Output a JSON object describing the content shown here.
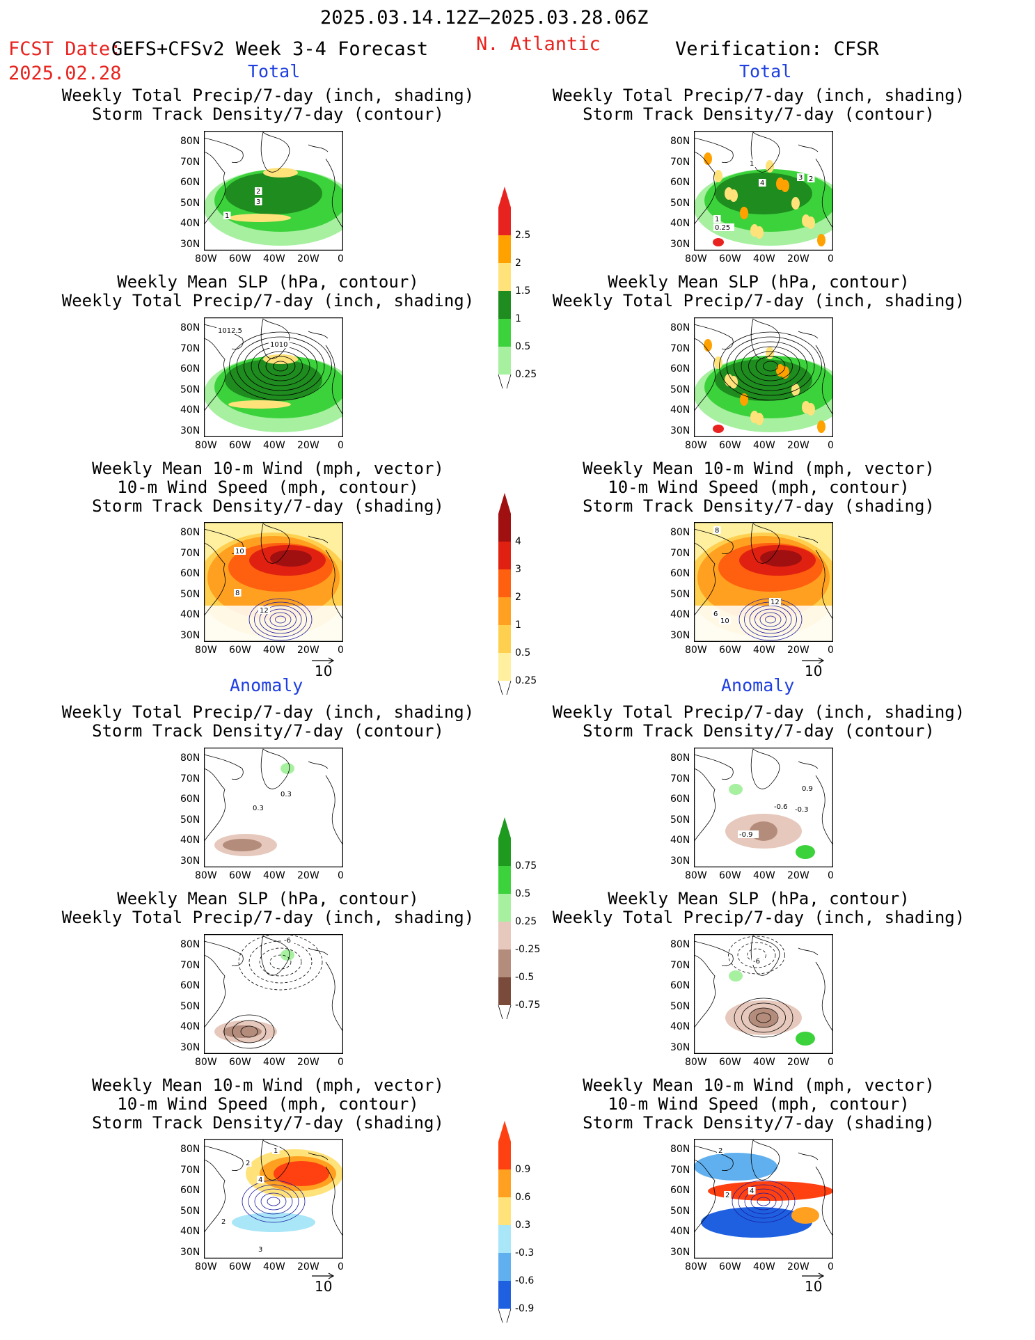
{
  "header": {
    "date_range": "2025.03.14.12Z–2025.03.28.06Z",
    "fcst_label": "FCST Date:",
    "model": "GEFS+CFSv2 Week 3-4 Forecast",
    "fcst_date": "2025.02.28",
    "region": "N. Atlantic",
    "verification": "Verification: CFSR"
  },
  "sections": {
    "total": "Total",
    "anomaly": "Anomaly"
  },
  "titles": {
    "precip_storm": [
      "Weekly Total Precip/7-day (inch, shading)",
      "Storm Track Density/7-day (contour)"
    ],
    "slp_precip": [
      "Weekly Mean SLP (hPa, contour)",
      "Weekly Total Precip/7-day (inch, shading)"
    ],
    "wind_storm": [
      "Weekly Mean 10-m Wind (mph, vector)",
      "10-m Wind Speed (mph, contour)",
      "Storm Track Density/7-day (shading)"
    ]
  },
  "axes": {
    "lat_labels": [
      "80N",
      "70N",
      "60N",
      "50N",
      "40N",
      "30N"
    ],
    "lon_labels": [
      "80W",
      "60W",
      "40W",
      "20W",
      "0"
    ]
  },
  "vector_ref": "10",
  "colorbars": {
    "precip_total": {
      "labels": [
        "2.5",
        "2",
        "1.5",
        "1",
        "0.5",
        "0.25"
      ],
      "colors": [
        "#e8231f",
        "#ffa200",
        "#ffe27a",
        "#1e8c1e",
        "#3cd23c",
        "#a6f0a0"
      ]
    },
    "storm_total": {
      "labels": [
        "4",
        "3",
        "2",
        "1",
        "0.5",
        "0.25"
      ],
      "colors": [
        "#a01010",
        "#e02010",
        "#ff6010",
        "#ffa020",
        "#ffd050",
        "#fff0a0"
      ]
    },
    "precip_anom": {
      "labels": [
        "0.75",
        "0.5",
        "0.25",
        "-0.25",
        "-0.5",
        "-0.75"
      ],
      "colors": [
        "#1e9a1e",
        "#3cd23c",
        "#a6f0a0",
        "#e6c8bc",
        "#b48c7c",
        "#7a4a3a"
      ]
    },
    "storm_anom": {
      "labels": [
        "0.9",
        "0.6",
        "0.3",
        "-0.3",
        "-0.6",
        "-0.9"
      ],
      "colors": [
        "#ff4010",
        "#ffa020",
        "#ffe27a",
        "#a8e6f8",
        "#60b0f0",
        "#1e60e0"
      ]
    }
  },
  "panel_labels": {
    "L1": [
      "1",
      "2",
      "3"
    ],
    "R1": [
      "1",
      "4",
      "3",
      "2",
      "1",
      "0.25"
    ],
    "L2": [
      "1012.5",
      "1010"
    ],
    "L3": [
      "10",
      "8",
      "12"
    ],
    "R3": [
      "8",
      "12",
      "6",
      "10"
    ],
    "L4": [
      "0.3",
      "0.3"
    ],
    "R4": [
      "0.9",
      "-0.6",
      "-0.3",
      "-0.9"
    ],
    "L5": [
      "-6"
    ],
    "R5": [
      "-6"
    ],
    "L6": [
      "1",
      "2",
      "4",
      "2",
      "3"
    ],
    "R6": [
      "2",
      "2",
      "4"
    ]
  }
}
